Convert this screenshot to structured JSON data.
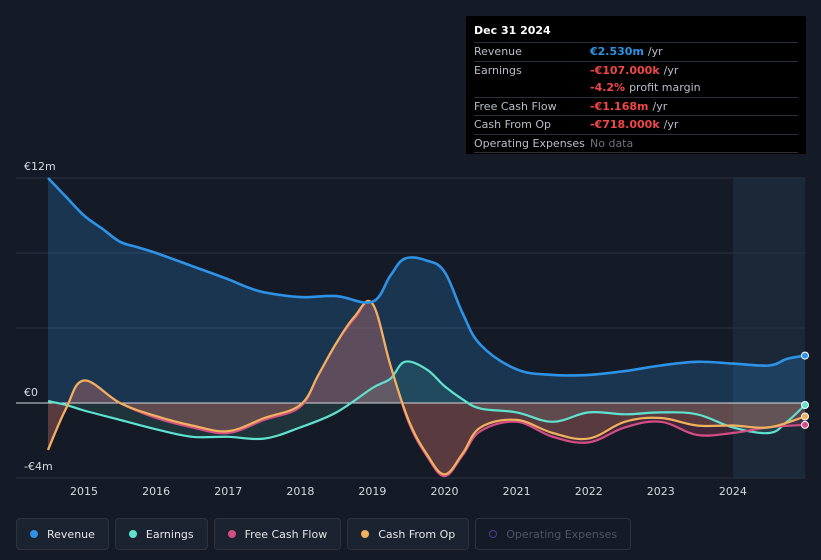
{
  "colors": {
    "revenue": "#2e93e6",
    "earnings": "#5fe3cf",
    "fcf": "#d44e85",
    "cfo": "#f0b25e",
    "opex": "#4b3e8c",
    "background": "#151b26"
  },
  "tooltip": {
    "date": "Dec 31 2024",
    "rows": [
      {
        "key": "Revenue",
        "value": "€2.530m",
        "unit": "/yr",
        "color": "#2e93e6"
      },
      {
        "key": "Earnings",
        "value": "-€107.000k",
        "unit": "/yr",
        "color": "#f04747"
      },
      {
        "key": "",
        "value": "-4.2%",
        "unit": "profit margin",
        "color": "#f04747"
      },
      {
        "key": "Free Cash Flow",
        "value": "-€1.168m",
        "unit": "/yr",
        "color": "#f04747"
      },
      {
        "key": "Cash From Op",
        "value": "-€718.000k",
        "unit": "/yr",
        "color": "#f04747"
      },
      {
        "key": "Operating Expenses",
        "value": "No data",
        "unit": "",
        "color": "#6b727c"
      }
    ]
  },
  "legend": [
    {
      "label": "Revenue",
      "color": "#2e93e6",
      "active": true
    },
    {
      "label": "Earnings",
      "color": "#5fe3cf",
      "active": true
    },
    {
      "label": "Free Cash Flow",
      "color": "#d44e85",
      "active": true
    },
    {
      "label": "Cash From Op",
      "color": "#f0b25e",
      "active": true
    },
    {
      "label": "Operating Expenses",
      "color": "#4b3e8c",
      "active": false
    }
  ],
  "chart_data": {
    "type": "area",
    "title": "",
    "xlabel": "",
    "ylabel": "",
    "ylim": [
      -4,
      12
    ],
    "xlim": [
      2014.5,
      2025.0
    ],
    "y_tick_labels": {
      "top": "€12m",
      "zero": "€0",
      "bottom": "-€4m"
    },
    "x_ticks": [
      "2015",
      "2016",
      "2017",
      "2018",
      "2019",
      "2020",
      "2021",
      "2022",
      "2023",
      "2024"
    ],
    "x_tick_values": [
      2015,
      2016,
      2017,
      2018,
      2019,
      2020,
      2021,
      2022,
      2023,
      2024
    ],
    "highlight_range": [
      2024.0,
      2025.0
    ],
    "series": [
      {
        "name": "Revenue",
        "x": [
          2014.5,
          2014.75,
          2015.0,
          2015.25,
          2015.5,
          2015.75,
          2016.0,
          2016.5,
          2017.0,
          2017.25,
          2017.5,
          2018.0,
          2018.5,
          2019.0,
          2019.25,
          2019.45,
          2019.75,
          2020.0,
          2020.25,
          2020.5,
          2021.0,
          2021.5,
          2022.0,
          2022.5,
          2023.0,
          2023.5,
          2024.0,
          2024.5,
          2024.75,
          2025.0
        ],
        "values": [
          12.0,
          11.0,
          10.0,
          9.3,
          8.6,
          8.3,
          8.0,
          7.3,
          6.6,
          6.2,
          5.9,
          5.65,
          5.7,
          5.4,
          6.8,
          7.7,
          7.6,
          7.0,
          4.8,
          3.1,
          1.8,
          1.5,
          1.5,
          1.7,
          2.0,
          2.2,
          2.1,
          2.0,
          2.35,
          2.53
        ]
      },
      {
        "name": "Earnings",
        "x": [
          2014.5,
          2014.75,
          2015.0,
          2015.5,
          2016.0,
          2016.5,
          2017.0,
          2017.5,
          2018.0,
          2018.5,
          2019.0,
          2019.25,
          2019.45,
          2019.75,
          2020.0,
          2020.25,
          2020.5,
          2021.0,
          2021.5,
          2022.0,
          2022.5,
          2023.0,
          2023.5,
          2024.0,
          2024.5,
          2024.75,
          2025.0
        ],
        "values": [
          0.1,
          -0.1,
          -0.4,
          -0.9,
          -1.4,
          -1.8,
          -1.8,
          -1.9,
          -1.3,
          -0.5,
          0.8,
          1.3,
          2.2,
          1.8,
          0.9,
          0.2,
          -0.3,
          -0.5,
          -1.0,
          -0.5,
          -0.6,
          -0.5,
          -0.6,
          -1.3,
          -1.6,
          -1.0,
          -0.107
        ]
      },
      {
        "name": "Free Cash Flow",
        "x": [
          2014.5,
          2014.75,
          2015.0,
          2015.5,
          2016.0,
          2016.5,
          2017.0,
          2017.5,
          2018.0,
          2018.25,
          2018.5,
          2018.75,
          2019.0,
          2019.25,
          2019.5,
          2019.75,
          2020.0,
          2020.25,
          2020.5,
          2021.0,
          2021.5,
          2022.0,
          2022.5,
          2023.0,
          2023.5,
          2024.0,
          2024.5,
          2025.0
        ],
        "values": [
          -2.5,
          -0.3,
          1.2,
          0.0,
          -0.8,
          -1.3,
          -1.6,
          -0.9,
          -0.2,
          1.5,
          3.2,
          4.5,
          5.3,
          2.0,
          -1.0,
          -2.8,
          -3.9,
          -2.8,
          -1.5,
          -1.0,
          -1.8,
          -2.1,
          -1.3,
          -1.0,
          -1.7,
          -1.6,
          -1.3,
          -1.168
        ]
      },
      {
        "name": "Cash From Op",
        "x": [
          2014.5,
          2014.75,
          2015.0,
          2015.5,
          2016.0,
          2016.5,
          2017.0,
          2017.5,
          2018.0,
          2018.25,
          2018.5,
          2018.75,
          2019.0,
          2019.25,
          2019.5,
          2019.75,
          2020.0,
          2020.25,
          2020.5,
          2021.0,
          2021.5,
          2022.0,
          2022.5,
          2023.0,
          2023.5,
          2024.0,
          2024.5,
          2025.0
        ],
        "values": [
          -2.5,
          -0.3,
          1.2,
          0.0,
          -0.7,
          -1.2,
          -1.5,
          -0.8,
          -0.1,
          1.5,
          3.2,
          4.6,
          5.3,
          2.0,
          -0.9,
          -2.7,
          -3.8,
          -2.7,
          -1.3,
          -0.9,
          -1.6,
          -1.9,
          -1.0,
          -0.8,
          -1.2,
          -1.2,
          -1.3,
          -0.718
        ]
      }
    ]
  }
}
